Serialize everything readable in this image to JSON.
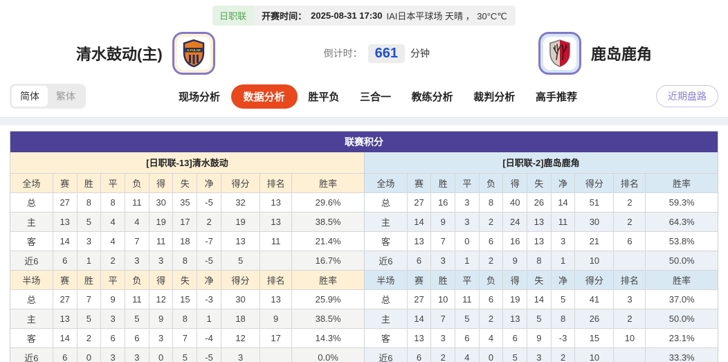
{
  "header": {
    "league_badge": "日职联",
    "kickoff_label": "开赛时间：",
    "kickoff_time": "2025-08-31 17:30",
    "venue_weather": "IAI日本平球场 天晴 ， 30°C℃",
    "home_team": "清水鼓动(主)",
    "away_team": "鹿岛鹿角",
    "countdown_label": "倒计时：",
    "countdown_value": "661",
    "countdown_unit": "分钟"
  },
  "nav": {
    "lang_options": [
      {
        "label": "简体",
        "active": true
      },
      {
        "label": "繁体",
        "active": false
      }
    ],
    "tabs": [
      {
        "label": "现场分析",
        "active": false
      },
      {
        "label": "数据分析",
        "active": true
      },
      {
        "label": "胜平负",
        "active": false
      },
      {
        "label": "三合一",
        "active": false
      },
      {
        "label": "教练分析",
        "active": false
      },
      {
        "label": "裁判分析",
        "active": false
      },
      {
        "label": "高手推荐",
        "active": false
      }
    ],
    "recent_button": "近期盘路"
  },
  "colors": {
    "title_bar": "#4c4197",
    "home_header_bg": "#fdf0d5",
    "away_header_bg": "#d9e9f3",
    "active_tab": "#e8481c"
  },
  "standings": {
    "title": "联赛积分",
    "row_label_classes": [
      "lbl-total",
      "lbl-home",
      "lbl-away-row",
      "lbl-recent"
    ],
    "home": {
      "subtitle": "[日职联-13]清水鼓动",
      "full": {
        "headers": [
          "全场",
          "赛",
          "胜",
          "平",
          "负",
          "得",
          "失",
          "净",
          "得分",
          "排名",
          "胜率"
        ],
        "rows": [
          [
            "总",
            "27",
            "8",
            "8",
            "11",
            "30",
            "35",
            "-5",
            "32",
            "13",
            "29.6%"
          ],
          [
            "主",
            "13",
            "5",
            "4",
            "4",
            "19",
            "17",
            "2",
            "19",
            "13",
            "38.5%"
          ],
          [
            "客",
            "14",
            "3",
            "4",
            "7",
            "11",
            "18",
            "-7",
            "13",
            "11",
            "21.4%"
          ],
          [
            "近6",
            "6",
            "1",
            "2",
            "3",
            "3",
            "8",
            "-5",
            "5",
            "",
            "16.7%"
          ]
        ]
      },
      "half": {
        "headers": [
          "半场",
          "赛",
          "胜",
          "平",
          "负",
          "得",
          "失",
          "净",
          "得分",
          "排名",
          "胜率"
        ],
        "rows": [
          [
            "总",
            "27",
            "7",
            "9",
            "11",
            "12",
            "15",
            "-3",
            "30",
            "13",
            "25.9%"
          ],
          [
            "主",
            "13",
            "5",
            "3",
            "5",
            "9",
            "8",
            "1",
            "18",
            "9",
            "38.5%"
          ],
          [
            "客",
            "14",
            "2",
            "6",
            "6",
            "3",
            "7",
            "-4",
            "12",
            "17",
            "14.3%"
          ],
          [
            "近6",
            "6",
            "0",
            "3",
            "3",
            "0",
            "5",
            "-5",
            "3",
            "",
            "0.0%"
          ]
        ]
      }
    },
    "away": {
      "subtitle": "[日职联-2]鹿岛鹿角",
      "full": {
        "headers": [
          "全场",
          "赛",
          "胜",
          "平",
          "负",
          "得",
          "失",
          "净",
          "得分",
          "排名",
          "胜率"
        ],
        "rows": [
          [
            "总",
            "27",
            "16",
            "3",
            "8",
            "40",
            "26",
            "14",
            "51",
            "2",
            "59.3%"
          ],
          [
            "主",
            "14",
            "9",
            "3",
            "2",
            "24",
            "13",
            "11",
            "30",
            "2",
            "64.3%"
          ],
          [
            "客",
            "13",
            "7",
            "0",
            "6",
            "16",
            "13",
            "3",
            "21",
            "6",
            "53.8%"
          ],
          [
            "近6",
            "6",
            "3",
            "1",
            "2",
            "9",
            "8",
            "1",
            "10",
            "",
            "50.0%"
          ]
        ]
      },
      "half": {
        "headers": [
          "半场",
          "赛",
          "胜",
          "平",
          "负",
          "得",
          "失",
          "净",
          "得分",
          "排名",
          "胜率"
        ],
        "rows": [
          [
            "总",
            "27",
            "10",
            "11",
            "6",
            "19",
            "14",
            "5",
            "41",
            "3",
            "37.0%"
          ],
          [
            "主",
            "14",
            "7",
            "5",
            "2",
            "13",
            "5",
            "8",
            "26",
            "2",
            "50.0%"
          ],
          [
            "客",
            "13",
            "3",
            "6",
            "4",
            "6",
            "9",
            "-3",
            "15",
            "10",
            "23.1%"
          ],
          [
            "近6",
            "6",
            "2",
            "4",
            "0",
            "5",
            "3",
            "2",
            "10",
            "",
            "33.3%"
          ]
        ]
      }
    }
  }
}
